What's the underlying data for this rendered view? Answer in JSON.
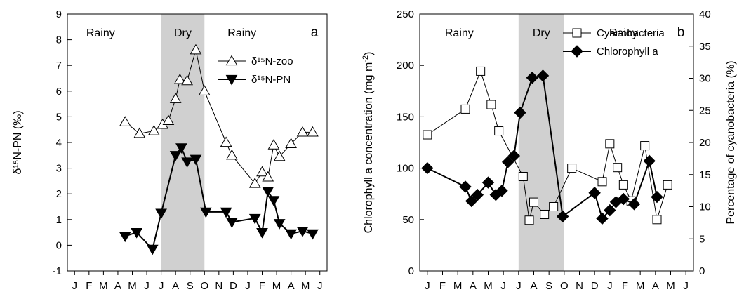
{
  "chart_data": [
    {
      "type": "line",
      "panel_label": "a",
      "x_ticks": [
        "J",
        "F",
        "M",
        "A",
        "M",
        "J",
        "J",
        "A",
        "S",
        "O",
        "N",
        "D",
        "J",
        "F",
        "M",
        "A",
        "M",
        "J"
      ],
      "ylabel_left": "δ¹⁵N-PN (‰)",
      "ylim": [
        -1,
        9
      ],
      "yticks": [
        -1,
        0,
        1,
        2,
        3,
        4,
        5,
        6,
        7,
        8,
        9
      ],
      "dry_band": [
        6.5,
        9.5
      ],
      "seasons": [
        {
          "label": "Rainy",
          "x": 2.3
        },
        {
          "label": "Dry",
          "x": 8.0
        },
        {
          "label": "Rainy",
          "x": 12.1
        }
      ],
      "legend_placement": "top-right",
      "series": [
        {
          "name": "δ¹⁵N-zoo",
          "marker": "triangle-up-open",
          "line_width": 1,
          "points": [
            [
              4,
              4.8
            ],
            [
              5,
              4.35
            ],
            [
              6,
              4.45
            ],
            [
              6.6,
              4.7
            ],
            [
              7,
              4.85
            ],
            [
              7.5,
              5.7
            ],
            [
              7.8,
              6.45
            ],
            [
              8.3,
              6.4
            ],
            [
              8.9,
              7.6
            ],
            [
              9.5,
              6.0
            ],
            [
              11,
              4.0
            ],
            [
              11.4,
              3.5
            ],
            [
              13,
              2.4
            ],
            [
              13.5,
              2.85
            ],
            [
              13.9,
              2.65
            ],
            [
              14.3,
              3.9
            ],
            [
              14.7,
              3.45
            ],
            [
              15.5,
              3.95
            ],
            [
              16.3,
              4.4
            ],
            [
              17,
              4.4
            ]
          ]
        },
        {
          "name": "δ¹⁵N-PN",
          "marker": "triangle-down-filled",
          "line_width": 2,
          "points": [
            [
              4,
              0.35
            ],
            [
              4.8,
              0.5
            ],
            [
              5.9,
              -0.15
            ],
            [
              6.5,
              1.25
            ],
            [
              7.5,
              3.5
            ],
            [
              7.9,
              3.8
            ],
            [
              8.3,
              3.25
            ],
            [
              8.9,
              3.35
            ],
            [
              9.6,
              1.3
            ],
            [
              11,
              1.3
            ],
            [
              11.4,
              0.9
            ],
            [
              13,
              1.05
            ],
            [
              13.5,
              0.5
            ],
            [
              13.9,
              2.1
            ],
            [
              14.3,
              1.75
            ],
            [
              14.7,
              0.85
            ],
            [
              15.5,
              0.45
            ],
            [
              16.3,
              0.55
            ],
            [
              17,
              0.45
            ]
          ]
        }
      ]
    },
    {
      "type": "line",
      "panel_label": "b",
      "x_ticks": [
        "J",
        "F",
        "M",
        "A",
        "M",
        "J",
        "J",
        "A",
        "S",
        "O",
        "N",
        "D",
        "J",
        "F",
        "M",
        "A",
        "M",
        "J"
      ],
      "ylabel_left": "Chlorophyll a concentration (mg m",
      "ylabel_left_sup": "-2",
      "ylabel_left_close": ")",
      "ylabel_right": "Percentage of cyanobacteria (%)",
      "ylim_left": [
        0,
        250
      ],
      "yticks_left": [
        0,
        50,
        100,
        150,
        200,
        250
      ],
      "ylim_right": [
        0,
        40
      ],
      "yticks_right": [
        0,
        5,
        10,
        15,
        20,
        25,
        30,
        35,
        40
      ],
      "dry_band": [
        6.5,
        9.5
      ],
      "seasons": [
        {
          "label": "Rainy",
          "x": 2.6
        },
        {
          "label": "Dry",
          "x": 8.0
        },
        {
          "label": "Rainy",
          "x": 13.4
        }
      ],
      "legend_placement": "top-right",
      "series": [
        {
          "name": "Cyanobacteria",
          "axis": "right",
          "marker": "square-open",
          "line_width": 1,
          "points": [
            [
              0.5,
              21.2
            ],
            [
              3,
              25.2
            ],
            [
              4,
              31.1
            ],
            [
              4.7,
              25.9
            ],
            [
              5.2,
              21.8
            ],
            [
              6.8,
              14.7
            ],
            [
              7.2,
              7.9
            ],
            [
              7.5,
              10.7
            ],
            [
              8.2,
              8.8
            ],
            [
              8.8,
              10.0
            ],
            [
              10,
              16.0
            ],
            [
              12,
              13.9
            ],
            [
              12.5,
              19.8
            ],
            [
              13,
              16.1
            ],
            [
              13.4,
              13.4
            ],
            [
              13.9,
              10.9
            ],
            [
              14.8,
              19.5
            ],
            [
              15.6,
              8.0
            ],
            [
              16.3,
              13.4
            ]
          ]
        },
        {
          "name": "Chlorophyll a",
          "axis": "left",
          "marker": "diamond-filled",
          "line_width": 2,
          "points": [
            [
              0.5,
              100
            ],
            [
              3,
              82
            ],
            [
              3.4,
              68
            ],
            [
              3.8,
              74
            ],
            [
              4.5,
              86
            ],
            [
              5,
              74
            ],
            [
              5.4,
              78
            ],
            [
              5.8,
              106
            ],
            [
              6.2,
              112
            ],
            [
              6.6,
              154
            ],
            [
              7.4,
              188
            ],
            [
              8.1,
              190
            ],
            [
              9.4,
              53
            ],
            [
              11.5,
              76
            ],
            [
              12,
              51
            ],
            [
              12.5,
              59
            ],
            [
              12.9,
              67
            ],
            [
              13.4,
              70
            ],
            [
              14.1,
              65
            ],
            [
              15.1,
              107
            ],
            [
              15.6,
              72
            ]
          ]
        }
      ]
    }
  ]
}
